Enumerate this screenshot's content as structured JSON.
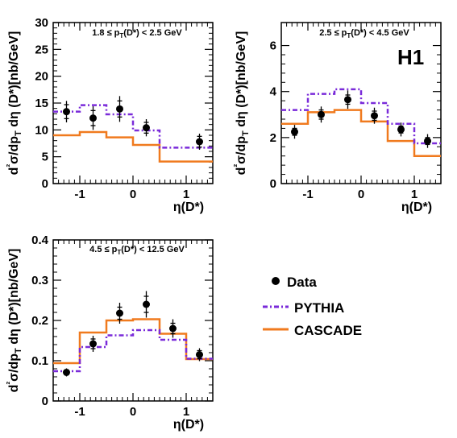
{
  "chart_data": [
    {
      "type": "line",
      "range_label": "1.8 ≤ p_T(D*) < 2.5 GeV",
      "xlabel": "η(D*)",
      "ylabel": "d²σ/dp_T dη (D*)[nb/GeV]",
      "xlim": [
        -1.5,
        1.5
      ],
      "ylim": [
        0,
        30
      ],
      "yticks": [
        0,
        5,
        10,
        15,
        20,
        25,
        30
      ],
      "xticks": [
        -1,
        0,
        1
      ],
      "bin_edges": [
        -1.5,
        -1.0,
        -0.5,
        0.0,
        0.5,
        1.0,
        1.5
      ],
      "series": [
        {
          "name": "Data",
          "x": [
            -1.25,
            -0.75,
            -0.25,
            0.25,
            0.75,
            1.25
          ],
          "values": [
            13.4,
            12.2,
            13.9,
            10.4,
            null,
            7.8
          ],
          "stat_err": [
            1.3,
            1.4,
            1.5,
            1.0,
            null,
            1.0
          ],
          "tot_err": [
            2.0,
            2.2,
            2.4,
            1.6,
            null,
            1.5
          ]
        },
        {
          "name": "PYTHIA",
          "values": [
            13.4,
            14.6,
            12.9,
            9.9,
            6.7,
            6.7
          ]
        },
        {
          "name": "CASCADE",
          "values": [
            9.0,
            9.6,
            8.6,
            7.2,
            4.1,
            4.1
          ]
        }
      ]
    },
    {
      "type": "line",
      "range_label": "2.5 ≤ p_T(D*) < 4.5 GeV",
      "extra_label": "H1",
      "xlabel": "η(D*)",
      "ylabel": "d²σ/dp_T dη (D*)[nb/GeV]",
      "xlim": [
        -1.5,
        1.5
      ],
      "ylim": [
        0,
        7
      ],
      "yticks": [
        0,
        2,
        4,
        6
      ],
      "xticks": [
        -1,
        0,
        1
      ],
      "bin_edges": [
        -1.5,
        -1.0,
        -0.5,
        0.0,
        0.5,
        1.0,
        1.5
      ],
      "series": [
        {
          "name": "Data",
          "x": [
            -1.25,
            -0.75,
            -0.25,
            0.25,
            0.75,
            1.25
          ],
          "values": [
            2.25,
            3.0,
            3.65,
            2.95,
            2.35,
            1.85
          ],
          "stat_err": [
            0.15,
            0.2,
            0.2,
            0.2,
            0.15,
            0.15
          ],
          "tot_err": [
            0.3,
            0.35,
            0.4,
            0.35,
            0.3,
            0.3
          ]
        },
        {
          "name": "PYTHIA",
          "values": [
            3.2,
            3.9,
            4.1,
            3.5,
            2.6,
            1.75
          ]
        },
        {
          "name": "CASCADE",
          "values": [
            2.6,
            3.1,
            3.2,
            2.7,
            1.85,
            1.2
          ]
        }
      ]
    },
    {
      "type": "line",
      "range_label": "4.5 ≤ p_T(D*) < 12.5 GeV",
      "xlabel": "η(D*)",
      "ylabel": "d²σ/dp_T dη (D*)[nb/GeV]",
      "xlim": [
        -1.5,
        1.5
      ],
      "ylim": [
        0,
        0.4
      ],
      "yticks": [
        0,
        0.1,
        0.2,
        0.3,
        0.4
      ],
      "xticks": [
        -1,
        0,
        1
      ],
      "bin_edges": [
        -1.5,
        -1.0,
        -0.5,
        0.0,
        0.5,
        1.0,
        1.5
      ],
      "series": [
        {
          "name": "Data",
          "x": [
            -1.25,
            -0.75,
            -0.25,
            0.25,
            0.75,
            1.25
          ],
          "values": [
            0.071,
            0.142,
            0.218,
            0.24,
            0.18,
            0.115
          ],
          "stat_err": [
            0.006,
            0.012,
            0.015,
            0.02,
            0.013,
            0.01
          ],
          "tot_err": [
            0.01,
            0.02,
            0.026,
            0.033,
            0.023,
            0.016
          ]
        },
        {
          "name": "PYTHIA",
          "values": [
            0.074,
            0.134,
            0.163,
            0.176,
            0.152,
            0.105
          ]
        },
        {
          "name": "CASCADE",
          "values": [
            0.094,
            0.17,
            0.2,
            0.203,
            0.167,
            0.104
          ]
        }
      ]
    }
  ],
  "legend": {
    "data_label": "Data",
    "pythia_label": "PYTHIA",
    "cascade_label": "CASCADE"
  },
  "colors": {
    "pythia": "#7a2bd9",
    "cascade": "#f07a1e",
    "data": "#000000"
  }
}
